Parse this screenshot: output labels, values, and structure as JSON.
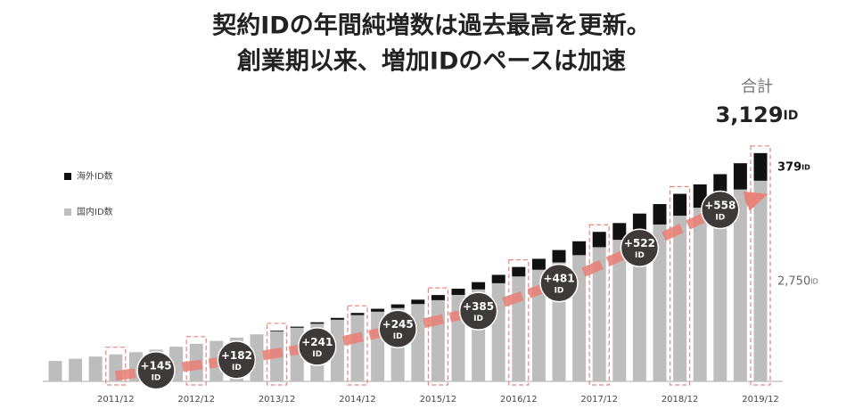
{
  "chart_data": {
    "type": "bar",
    "stacked": true,
    "title": [
      "契約IDの年間純増数は過去最高を更新。",
      "創業期以来、増加IDのペースは加速"
    ],
    "categories": [
      null,
      null,
      null,
      "2011/12",
      null,
      null,
      null,
      "2012/12",
      null,
      null,
      null,
      "2013/12",
      null,
      null,
      null,
      "2014/12",
      null,
      null,
      null,
      "2015/12",
      null,
      null,
      null,
      "2016/12",
      null,
      null,
      null,
      "2017/12",
      null,
      null,
      null,
      "2018/12",
      null,
      null,
      null,
      "2019/12"
    ],
    "series": [
      {
        "name": "国内ID数",
        "color": "#bdbdbd",
        "values": [
          280,
          310,
          340,
          370,
          400,
          435,
          475,
          515,
          555,
          600,
          645,
          687,
          735,
          790,
          845,
          908,
          955,
          1005,
          1060,
          1113,
          1185,
          1260,
          1345,
          1438,
          1530,
          1630,
          1730,
          1839,
          1940,
          2045,
          2150,
          2271,
          2380,
          2500,
          2630,
          2750
        ],
        "value_labels": [
          null,
          null,
          null,
          null,
          null,
          null,
          null,
          null,
          null,
          null,
          null,
          null,
          null,
          null,
          null,
          null,
          null,
          null,
          null,
          null,
          null,
          null,
          null,
          null,
          null,
          null,
          null,
          null,
          null,
          null,
          null,
          null,
          null,
          null,
          null,
          "2,750ID"
        ]
      },
      {
        "name": "海外ID数",
        "color": "#111111",
        "values": [
          0,
          0,
          0,
          0,
          0,
          0,
          0,
          0,
          0,
          0,
          0,
          10,
          15,
          20,
          25,
          30,
          40,
          50,
          60,
          70,
          85,
          100,
          115,
          130,
          150,
          170,
          190,
          210,
          230,
          255,
          280,
          300,
          320,
          340,
          360,
          379
        ],
        "value_labels": [
          null,
          null,
          null,
          null,
          null,
          null,
          null,
          null,
          null,
          null,
          null,
          null,
          null,
          null,
          null,
          null,
          null,
          null,
          null,
          null,
          null,
          null,
          null,
          null,
          null,
          null,
          null,
          null,
          null,
          null,
          null,
          null,
          null,
          null,
          null,
          "379ID"
        ]
      }
    ],
    "total": {
      "title": "合計",
      "value": 3129,
      "label": "3,129ID"
    },
    "increments": [
      {
        "value": 145,
        "label": "+145 ID"
      },
      {
        "value": 182,
        "label": "+182 ID"
      },
      {
        "value": 241,
        "label": "+241 ID"
      },
      {
        "value": 245,
        "label": "+245 ID"
      },
      {
        "value": 385,
        "label": "+385 ID"
      },
      {
        "value": 481,
        "label": "+481 ID"
      },
      {
        "value": 522,
        "label": "+522 ID"
      },
      {
        "value": 558,
        "label": "+558 ID"
      }
    ],
    "ylim": [
      0,
      3200
    ],
    "legend": "left"
  }
}
